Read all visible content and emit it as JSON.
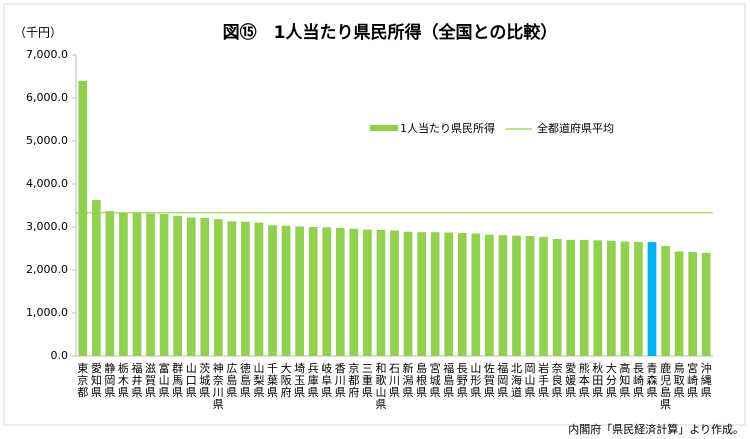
{
  "chart_data": {
    "type": "bar",
    "title": "図⑮　1人当たり県民所得（全国との比較）",
    "y_unit": "（千円）",
    "source": "内閣府「県民経済計算」より作成。",
    "categories": [
      "東京都",
      "愛知県",
      "静岡県",
      "栃木県",
      "福井県",
      "滋賀県",
      "富山県",
      "群馬県",
      "山口県",
      "茨城県",
      "神奈川県",
      "広島県",
      "徳島県",
      "山梨県",
      "千葉県",
      "大阪府",
      "埼玉県",
      "兵庫県",
      "岐阜県",
      "香川県",
      "京都府",
      "三重県",
      "和歌山県",
      "石川県",
      "新潟県",
      "島根県",
      "宮城県",
      "福島県",
      "長野県",
      "山形県",
      "佐賀県",
      "福岡県",
      "北海道",
      "岡山県",
      "岩手県",
      "奈良県",
      "愛媛県",
      "熊本県",
      "秋田県",
      "大分県",
      "高知県",
      "長崎県",
      "青森県",
      "鹿児島県",
      "鳥取県",
      "宮崎県",
      "沖縄県"
    ],
    "series": [
      {
        "name": "1人当たり県民所得",
        "color": "#92d050",
        "values": [
          6400,
          3630,
          3370,
          3330,
          3320,
          3310,
          3300,
          3260,
          3220,
          3210,
          3180,
          3130,
          3120,
          3100,
          3040,
          3030,
          3010,
          3000,
          2990,
          2980,
          2960,
          2940,
          2930,
          2920,
          2890,
          2880,
          2880,
          2870,
          2860,
          2850,
          2820,
          2810,
          2800,
          2790,
          2770,
          2720,
          2700,
          2700,
          2690,
          2680,
          2660,
          2650,
          2650,
          2560,
          2430,
          2420,
          2400
        ],
        "bar_colors": [
          "#92d050",
          "#92d050",
          "#92d050",
          "#92d050",
          "#92d050",
          "#92d050",
          "#92d050",
          "#92d050",
          "#92d050",
          "#92d050",
          "#92d050",
          "#92d050",
          "#92d050",
          "#92d050",
          "#92d050",
          "#92d050",
          "#92d050",
          "#92d050",
          "#92d050",
          "#92d050",
          "#92d050",
          "#92d050",
          "#92d050",
          "#92d050",
          "#92d050",
          "#92d050",
          "#92d050",
          "#92d050",
          "#92d050",
          "#92d050",
          "#92d050",
          "#92d050",
          "#92d050",
          "#92d050",
          "#92d050",
          "#92d050",
          "#92d050",
          "#92d050",
          "#92d050",
          "#92d050",
          "#92d050",
          "#92d050",
          "#00b0f0",
          "#92d050",
          "#92d050",
          "#92d050",
          "#92d050"
        ]
      }
    ],
    "reference_line": {
      "name": "全都道府県平均",
      "value": 3330,
      "color": "#92d050"
    },
    "ylim": [
      0,
      7000
    ],
    "yticks": [
      {
        "value": 0,
        "label": "0.0"
      },
      {
        "value": 1000,
        "label": "1,000.0"
      },
      {
        "value": 2000,
        "label": "2,000.0"
      },
      {
        "value": 3000,
        "label": "3,000.0"
      },
      {
        "value": 4000,
        "label": "4,000.0"
      },
      {
        "value": 5000,
        "label": "5,000.0"
      },
      {
        "value": 6000,
        "label": "6,000.0"
      },
      {
        "value": 7000,
        "label": "7,000.0"
      }
    ],
    "grid": false
  }
}
